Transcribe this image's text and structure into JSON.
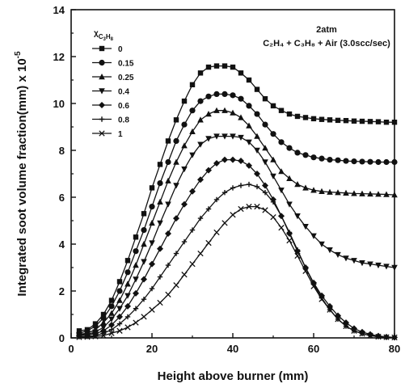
{
  "chart_data": {
    "type": "line",
    "xlabel": "Height above burner (mm)",
    "ylabel_main": "Integrated soot volume fraction(mm) x 10",
    "ylabel_exp": "-5",
    "xlim": [
      0,
      80
    ],
    "ylim": [
      0,
      14
    ],
    "xticks": [
      0,
      20,
      40,
      60,
      80
    ],
    "yticks": [
      0,
      2,
      4,
      6,
      8,
      10,
      12,
      14
    ],
    "grid": false,
    "legend_position": "top-left",
    "legend_title_main": "χ",
    "legend_title_sub": "C",
    "legend_title_subsub": "3",
    "legend_title_sub2": "H",
    "legend_title_subsub2": "8",
    "annotation_line1": "2atm",
    "annotation_line2": "C₂H₄ + C₃H₈ + Air (3.0scc/sec)",
    "series": [
      {
        "name": "0",
        "marker": "square",
        "points": [
          [
            2,
            0.3
          ],
          [
            4,
            0.35
          ],
          [
            6,
            0.6
          ],
          [
            8,
            1.0
          ],
          [
            10,
            1.6
          ],
          [
            12,
            2.4
          ],
          [
            14,
            3.3
          ],
          [
            16,
            4.3
          ],
          [
            18,
            5.3
          ],
          [
            20,
            6.4
          ],
          [
            22,
            7.4
          ],
          [
            24,
            8.4
          ],
          [
            26,
            9.3
          ],
          [
            28,
            10.1
          ],
          [
            30,
            10.8
          ],
          [
            32,
            11.3
          ],
          [
            34,
            11.55
          ],
          [
            36,
            11.6
          ],
          [
            38,
            11.6
          ],
          [
            40,
            11.55
          ],
          [
            42,
            11.3
          ],
          [
            44,
            11.0
          ],
          [
            46,
            10.6
          ],
          [
            48,
            10.2
          ],
          [
            50,
            9.9
          ],
          [
            52,
            9.7
          ],
          [
            54,
            9.55
          ],
          [
            56,
            9.45
          ],
          [
            58,
            9.4
          ],
          [
            60,
            9.35
          ],
          [
            62,
            9.32
          ],
          [
            64,
            9.3
          ],
          [
            66,
            9.28
          ],
          [
            68,
            9.27
          ],
          [
            70,
            9.25
          ],
          [
            72,
            9.24
          ],
          [
            74,
            9.23
          ],
          [
            76,
            9.22
          ],
          [
            78,
            9.2
          ],
          [
            80,
            9.2
          ]
        ]
      },
      {
        "name": "0.15",
        "marker": "circle",
        "points": [
          [
            2,
            0.2
          ],
          [
            4,
            0.3
          ],
          [
            6,
            0.5
          ],
          [
            8,
            0.85
          ],
          [
            10,
            1.35
          ],
          [
            12,
            2.0
          ],
          [
            14,
            2.8
          ],
          [
            16,
            3.7
          ],
          [
            18,
            4.6
          ],
          [
            20,
            5.6
          ],
          [
            22,
            6.6
          ],
          [
            24,
            7.5
          ],
          [
            26,
            8.4
          ],
          [
            28,
            9.1
          ],
          [
            30,
            9.7
          ],
          [
            32,
            10.1
          ],
          [
            34,
            10.3
          ],
          [
            36,
            10.4
          ],
          [
            38,
            10.4
          ],
          [
            40,
            10.35
          ],
          [
            42,
            10.2
          ],
          [
            44,
            9.9
          ],
          [
            46,
            9.55
          ],
          [
            48,
            9.1
          ],
          [
            50,
            8.7
          ],
          [
            52,
            8.35
          ],
          [
            54,
            8.1
          ],
          [
            56,
            7.9
          ],
          [
            58,
            7.8
          ],
          [
            60,
            7.7
          ],
          [
            62,
            7.65
          ],
          [
            64,
            7.6
          ],
          [
            66,
            7.58
          ],
          [
            68,
            7.55
          ],
          [
            70,
            7.53
          ],
          [
            72,
            7.52
          ],
          [
            74,
            7.51
          ],
          [
            76,
            7.5
          ],
          [
            78,
            7.5
          ],
          [
            80,
            7.5
          ]
        ]
      },
      {
        "name": "0.25",
        "marker": "triangle-up",
        "points": [
          [
            2,
            0.15
          ],
          [
            4,
            0.2
          ],
          [
            6,
            0.35
          ],
          [
            8,
            0.65
          ],
          [
            10,
            1.05
          ],
          [
            12,
            1.6
          ],
          [
            14,
            2.3
          ],
          [
            16,
            3.1
          ],
          [
            18,
            4.0
          ],
          [
            20,
            4.9
          ],
          [
            22,
            5.8
          ],
          [
            24,
            6.7
          ],
          [
            26,
            7.5
          ],
          [
            28,
            8.2
          ],
          [
            30,
            8.8
          ],
          [
            32,
            9.3
          ],
          [
            34,
            9.55
          ],
          [
            36,
            9.7
          ],
          [
            38,
            9.7
          ],
          [
            40,
            9.6
          ],
          [
            42,
            9.4
          ],
          [
            44,
            9.05
          ],
          [
            46,
            8.6
          ],
          [
            48,
            8.1
          ],
          [
            50,
            7.6
          ],
          [
            52,
            7.1
          ],
          [
            54,
            6.8
          ],
          [
            56,
            6.55
          ],
          [
            58,
            6.4
          ],
          [
            60,
            6.3
          ],
          [
            62,
            6.25
          ],
          [
            64,
            6.22
          ],
          [
            66,
            6.2
          ],
          [
            68,
            6.18
          ],
          [
            70,
            6.16
          ],
          [
            72,
            6.15
          ],
          [
            74,
            6.14
          ],
          [
            76,
            6.13
          ],
          [
            78,
            6.12
          ],
          [
            80,
            6.1
          ]
        ]
      },
      {
        "name": "0.4",
        "marker": "triangle-down",
        "points": [
          [
            2,
            0.12
          ],
          [
            4,
            0.15
          ],
          [
            6,
            0.25
          ],
          [
            8,
            0.45
          ],
          [
            10,
            0.8
          ],
          [
            12,
            1.25
          ],
          [
            14,
            1.8
          ],
          [
            16,
            2.5
          ],
          [
            18,
            3.25
          ],
          [
            20,
            4.05
          ],
          [
            22,
            4.9
          ],
          [
            24,
            5.7
          ],
          [
            26,
            6.5
          ],
          [
            28,
            7.2
          ],
          [
            30,
            7.8
          ],
          [
            32,
            8.25
          ],
          [
            34,
            8.5
          ],
          [
            36,
            8.6
          ],
          [
            38,
            8.6
          ],
          [
            40,
            8.6
          ],
          [
            42,
            8.55
          ],
          [
            44,
            8.35
          ],
          [
            46,
            8.0
          ],
          [
            48,
            7.5
          ],
          [
            50,
            6.9
          ],
          [
            52,
            6.3
          ],
          [
            54,
            5.7
          ],
          [
            56,
            5.2
          ],
          [
            58,
            4.75
          ],
          [
            60,
            4.35
          ],
          [
            62,
            4.0
          ],
          [
            64,
            3.75
          ],
          [
            66,
            3.55
          ],
          [
            68,
            3.4
          ],
          [
            70,
            3.3
          ],
          [
            72,
            3.2
          ],
          [
            74,
            3.15
          ],
          [
            76,
            3.1
          ],
          [
            78,
            3.05
          ],
          [
            80,
            3.0
          ]
        ]
      },
      {
        "name": "0.6",
        "marker": "diamond",
        "points": [
          [
            2,
            0.1
          ],
          [
            4,
            0.12
          ],
          [
            6,
            0.18
          ],
          [
            8,
            0.3
          ],
          [
            10,
            0.55
          ],
          [
            12,
            0.9
          ],
          [
            14,
            1.35
          ],
          [
            16,
            1.9
          ],
          [
            18,
            2.5
          ],
          [
            20,
            3.15
          ],
          [
            22,
            3.8
          ],
          [
            24,
            4.45
          ],
          [
            26,
            5.1
          ],
          [
            28,
            5.7
          ],
          [
            30,
            6.25
          ],
          [
            32,
            6.75
          ],
          [
            34,
            7.15
          ],
          [
            36,
            7.45
          ],
          [
            38,
            7.6
          ],
          [
            40,
            7.6
          ],
          [
            42,
            7.55
          ],
          [
            44,
            7.35
          ],
          [
            46,
            7.0
          ],
          [
            48,
            6.5
          ],
          [
            50,
            5.9
          ],
          [
            52,
            5.2
          ],
          [
            54,
            4.45
          ],
          [
            56,
            3.7
          ],
          [
            58,
            3.0
          ],
          [
            60,
            2.35
          ],
          [
            62,
            1.8
          ],
          [
            64,
            1.35
          ],
          [
            66,
            0.95
          ],
          [
            68,
            0.65
          ],
          [
            70,
            0.4
          ],
          [
            72,
            0.25
          ],
          [
            74,
            0.15
          ],
          [
            76,
            0.08
          ],
          [
            78,
            0.04
          ],
          [
            80,
            0.02
          ]
        ]
      },
      {
        "name": "0.8",
        "marker": "plus",
        "points": [
          [
            2,
            0.05
          ],
          [
            4,
            0.06
          ],
          [
            6,
            0.1
          ],
          [
            8,
            0.2
          ],
          [
            10,
            0.35
          ],
          [
            12,
            0.6
          ],
          [
            14,
            0.9
          ],
          [
            16,
            1.25
          ],
          [
            18,
            1.65
          ],
          [
            20,
            2.1
          ],
          [
            22,
            2.6
          ],
          [
            24,
            3.1
          ],
          [
            26,
            3.6
          ],
          [
            28,
            4.1
          ],
          [
            30,
            4.6
          ],
          [
            32,
            5.1
          ],
          [
            34,
            5.5
          ],
          [
            36,
            5.9
          ],
          [
            38,
            6.2
          ],
          [
            40,
            6.4
          ],
          [
            42,
            6.5
          ],
          [
            44,
            6.55
          ],
          [
            46,
            6.45
          ],
          [
            48,
            6.2
          ],
          [
            50,
            5.8
          ],
          [
            52,
            5.2
          ],
          [
            54,
            4.5
          ],
          [
            56,
            3.75
          ],
          [
            58,
            3.0
          ],
          [
            60,
            2.3
          ],
          [
            62,
            1.7
          ],
          [
            64,
            1.2
          ],
          [
            66,
            0.8
          ],
          [
            68,
            0.5
          ],
          [
            70,
            0.3
          ],
          [
            72,
            0.18
          ],
          [
            74,
            0.1
          ],
          [
            76,
            0.05
          ],
          [
            78,
            0.03
          ],
          [
            80,
            0.02
          ]
        ]
      },
      {
        "name": "1",
        "marker": "x",
        "points": [
          [
            2,
            0.03
          ],
          [
            4,
            0.04
          ],
          [
            6,
            0.06
          ],
          [
            8,
            0.1
          ],
          [
            10,
            0.2
          ],
          [
            12,
            0.3
          ],
          [
            14,
            0.45
          ],
          [
            16,
            0.65
          ],
          [
            18,
            0.9
          ],
          [
            20,
            1.2
          ],
          [
            22,
            1.5
          ],
          [
            24,
            1.85
          ],
          [
            26,
            2.25
          ],
          [
            28,
            2.7
          ],
          [
            30,
            3.15
          ],
          [
            32,
            3.6
          ],
          [
            34,
            4.05
          ],
          [
            36,
            4.5
          ],
          [
            38,
            4.9
          ],
          [
            40,
            5.25
          ],
          [
            42,
            5.5
          ],
          [
            44,
            5.6
          ],
          [
            46,
            5.6
          ],
          [
            48,
            5.45
          ],
          [
            50,
            5.15
          ],
          [
            52,
            4.7
          ],
          [
            54,
            4.15
          ],
          [
            56,
            3.5
          ],
          [
            58,
            2.85
          ],
          [
            60,
            2.2
          ],
          [
            62,
            1.65
          ],
          [
            64,
            1.2
          ],
          [
            66,
            0.8
          ],
          [
            68,
            0.5
          ],
          [
            70,
            0.3
          ],
          [
            72,
            0.18
          ],
          [
            74,
            0.1
          ],
          [
            76,
            0.05
          ],
          [
            78,
            0.03
          ],
          [
            80,
            0.02
          ]
        ]
      }
    ]
  }
}
